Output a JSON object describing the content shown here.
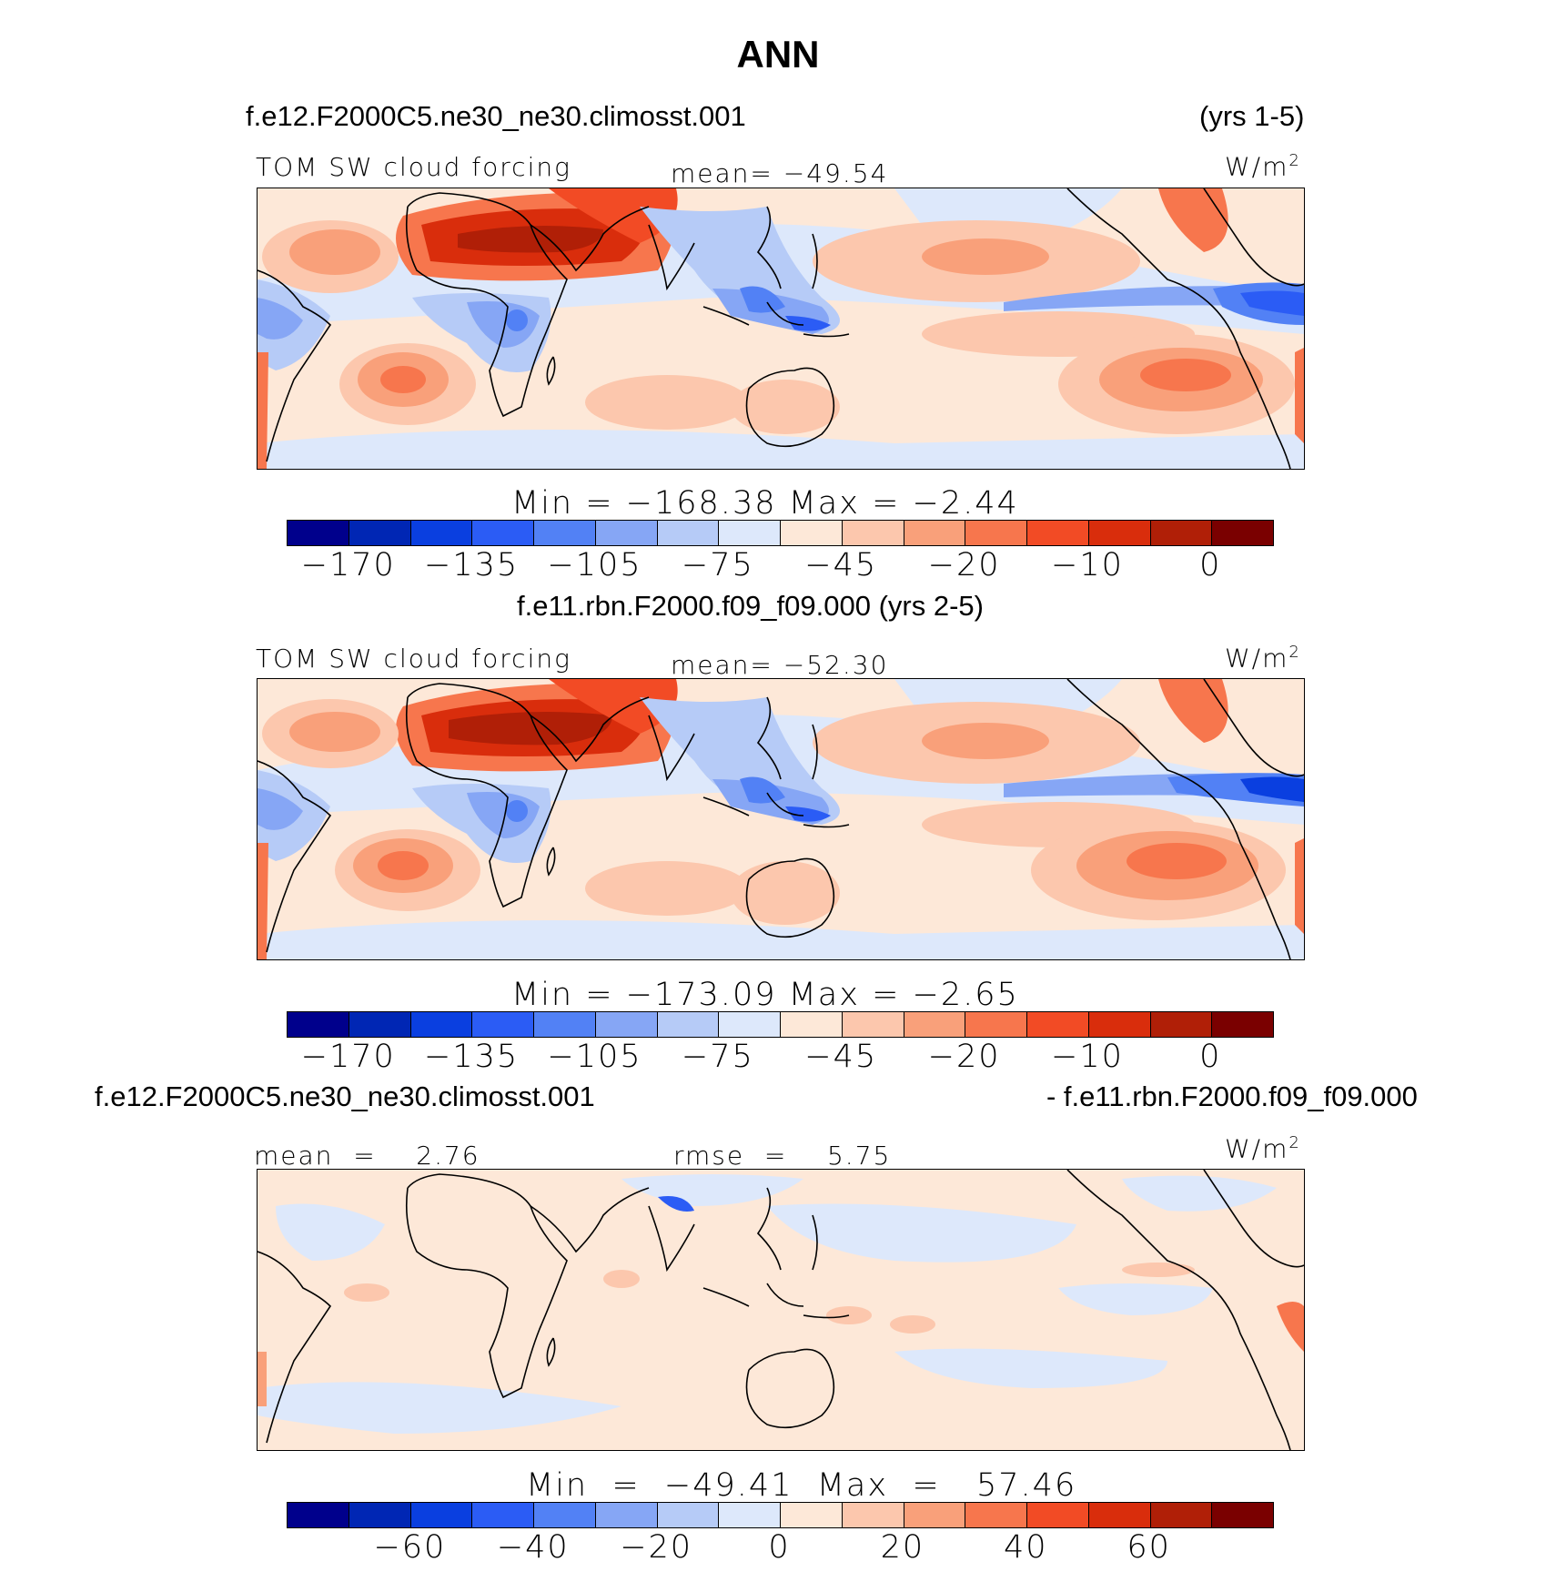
{
  "title": "ANN",
  "colors": [
    "#00008c",
    "#0026b4",
    "#0a3fe0",
    "#2b5cf5",
    "#5281f5",
    "#86a6f5",
    "#b6cbf7",
    "#dde8fb",
    "#fde8d8",
    "#fcc7ad",
    "#f9a07a",
    "#f7764d",
    "#f24b25",
    "#d92d0c",
    "#b01f07",
    "#7a0000"
  ],
  "panel1": {
    "case": "f.e12.F2000C5.ne30_ne30.climosst.001",
    "years": "(yrs 1-5)",
    "variable": "TOM SW cloud forcing",
    "mean": "mean= −49.54",
    "units": "W/m",
    "units_sup": "2",
    "minmax": "Min  =  −168.38  Max  =    −2.44",
    "ticks": [
      "−170",
      "−135",
      "−105",
      "−75",
      "−45",
      "−20",
      "−10",
      "0"
    ]
  },
  "panel2": {
    "case": "f.e11.rbn.F2000.f09_f09.000 (yrs 2-5)",
    "variable": "TOM SW cloud forcing",
    "mean": "mean= −52.30",
    "units": "W/m",
    "units_sup": "2",
    "minmax": "Min  =  −173.09  Max  =    −2.65",
    "ticks": [
      "−170",
      "−135",
      "−105",
      "−75",
      "−45",
      "−20",
      "−10",
      "0"
    ]
  },
  "panel3": {
    "case_left": "f.e12.F2000C5.ne30_ne30.climosst.001",
    "case_right": "- f.e11.rbn.F2000.f09_f09.000",
    "mean": "mean  =    2.76",
    "rmse": "rmse  =    5.75",
    "units": "W/m",
    "units_sup": "2",
    "minmax": "Min  =  −49.41  Max  =   57.46",
    "ticks": [
      "−60",
      "−40",
      "−20",
      "0",
      "20",
      "40",
      "60"
    ]
  }
}
